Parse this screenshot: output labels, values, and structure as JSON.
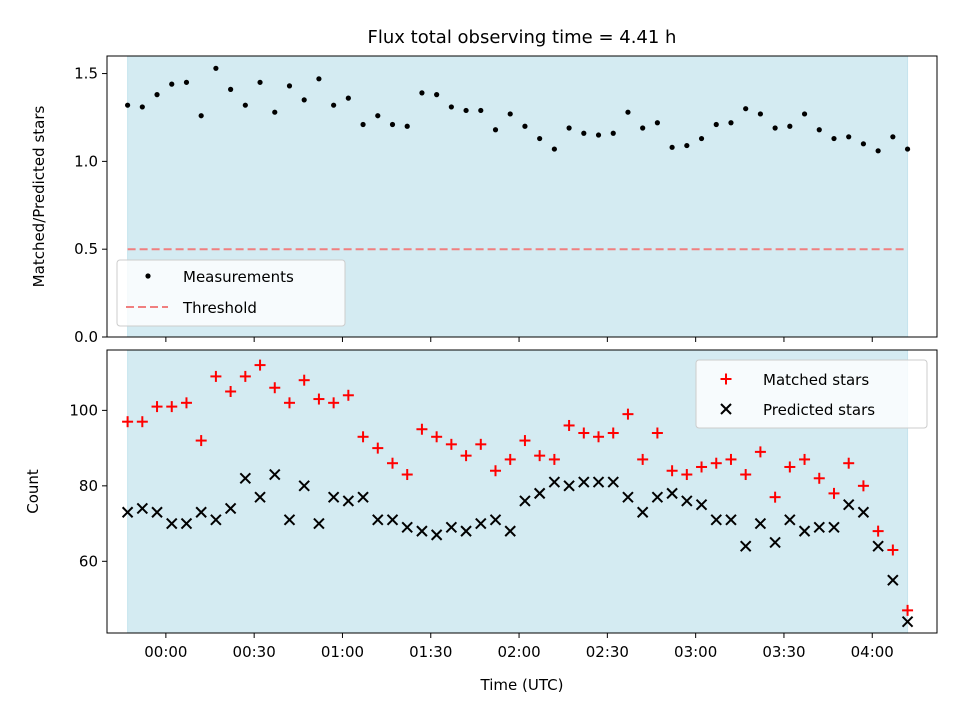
{
  "title": "Flux total observing time = 4.41 h",
  "colors": {
    "shade": "#add8e6",
    "measurement": "#000000",
    "threshold": "#f07f7f",
    "matched": "#ff0000",
    "predicted": "#000000"
  },
  "chart_data": [
    {
      "type": "scatter",
      "panel": "top",
      "ylabel": "Matched/Predicted stars",
      "ylim": [
        0,
        1.6
      ],
      "yticks": [
        0.0,
        0.5,
        1.0,
        1.5
      ],
      "ytick_labels": [
        "0.0",
        "0.5",
        "1.0",
        "1.5"
      ],
      "legend_position": "lower-left",
      "legend": [
        "Measurements",
        "Threshold"
      ],
      "shaded_range": [
        "-00:13",
        "04:12"
      ],
      "threshold": 0.5,
      "series": [
        {
          "name": "Measurements",
          "x": [
            "-00:13",
            "-00:08",
            "-00:03",
            "00:02",
            "00:07",
            "00:12",
            "00:17",
            "00:22",
            "00:27",
            "00:32",
            "00:37",
            "00:42",
            "00:47",
            "00:52",
            "00:57",
            "01:02",
            "01:07",
            "01:12",
            "01:17",
            "01:22",
            "01:27",
            "01:32",
            "01:37",
            "01:42",
            "01:47",
            "01:52",
            "01:57",
            "02:02",
            "02:07",
            "02:12",
            "02:17",
            "02:22",
            "02:27",
            "02:32",
            "02:37",
            "02:42",
            "02:47",
            "02:52",
            "02:57",
            "03:02",
            "03:07",
            "03:12",
            "03:17",
            "03:22",
            "03:27",
            "03:32",
            "03:37",
            "03:42",
            "03:47",
            "03:52",
            "03:57",
            "04:02",
            "04:07",
            "04:12"
          ],
          "y": [
            1.32,
            1.31,
            1.38,
            1.44,
            1.45,
            1.26,
            1.53,
            1.41,
            1.32,
            1.45,
            1.28,
            1.43,
            1.35,
            1.47,
            1.32,
            1.36,
            1.21,
            1.26,
            1.21,
            1.2,
            1.39,
            1.38,
            1.31,
            1.29,
            1.29,
            1.18,
            1.27,
            1.2,
            1.13,
            1.07,
            1.19,
            1.16,
            1.15,
            1.16,
            1.28,
            1.19,
            1.22,
            1.08,
            1.09,
            1.13,
            1.21,
            1.22,
            1.3,
            1.27,
            1.19,
            1.2,
            1.27,
            1.18,
            1.13,
            1.14,
            1.1,
            1.06,
            1.14,
            1.07
          ]
        }
      ]
    },
    {
      "type": "scatter",
      "panel": "bottom",
      "xlabel": "Time (UTC)",
      "ylabel": "Count",
      "ylim": [
        41,
        116
      ],
      "yticks": [
        60,
        80,
        100
      ],
      "ytick_labels": [
        "60",
        "80",
        "100"
      ],
      "xticks": [
        "00:00",
        "00:30",
        "01:00",
        "01:30",
        "02:00",
        "02:30",
        "03:00",
        "03:30",
        "04:00"
      ],
      "xlim": [
        "-00:20",
        "04:22"
      ],
      "legend_position": "upper-right",
      "legend": [
        "Matched stars",
        "Predicted stars"
      ],
      "series": [
        {
          "name": "Matched stars",
          "x": [
            "-00:13",
            "-00:08",
            "-00:03",
            "00:02",
            "00:07",
            "00:12",
            "00:17",
            "00:22",
            "00:27",
            "00:32",
            "00:37",
            "00:42",
            "00:47",
            "00:52",
            "00:57",
            "01:02",
            "01:07",
            "01:12",
            "01:17",
            "01:22",
            "01:27",
            "01:32",
            "01:37",
            "01:42",
            "01:47",
            "01:52",
            "01:57",
            "02:02",
            "02:07",
            "02:12",
            "02:17",
            "02:22",
            "02:27",
            "02:32",
            "02:37",
            "02:42",
            "02:47",
            "02:52",
            "02:57",
            "03:02",
            "03:07",
            "03:12",
            "03:17",
            "03:22",
            "03:27",
            "03:32",
            "03:37",
            "03:42",
            "03:47",
            "03:52",
            "03:57",
            "04:02",
            "04:07",
            "04:12"
          ],
          "y": [
            97,
            97,
            101,
            101,
            102,
            92,
            109,
            105,
            109,
            112,
            106,
            102,
            108,
            103,
            102,
            104,
            93,
            90,
            86,
            83,
            95,
            93,
            91,
            88,
            91,
            84,
            87,
            92,
            88,
            87,
            96,
            94,
            93,
            94,
            99,
            87,
            94,
            84,
            83,
            85,
            86,
            87,
            83,
            89,
            77,
            85,
            87,
            82,
            78,
            86,
            80,
            68,
            63,
            47
          ]
        },
        {
          "name": "Predicted stars",
          "x": [
            "-00:13",
            "-00:08",
            "-00:03",
            "00:02",
            "00:07",
            "00:12",
            "00:17",
            "00:22",
            "00:27",
            "00:32",
            "00:37",
            "00:42",
            "00:47",
            "00:52",
            "00:57",
            "01:02",
            "01:07",
            "01:12",
            "01:17",
            "01:22",
            "01:27",
            "01:32",
            "01:37",
            "01:42",
            "01:47",
            "01:52",
            "01:57",
            "02:02",
            "02:07",
            "02:12",
            "02:17",
            "02:22",
            "02:27",
            "02:32",
            "02:37",
            "02:42",
            "02:47",
            "02:52",
            "02:57",
            "03:02",
            "03:07",
            "03:12",
            "03:17",
            "03:22",
            "03:27",
            "03:32",
            "03:37",
            "03:42",
            "03:47",
            "03:52",
            "03:57",
            "04:02",
            "04:07",
            "04:12"
          ],
          "y": [
            73,
            74,
            73,
            70,
            70,
            73,
            71,
            74,
            82,
            77,
            83,
            71,
            80,
            70,
            77,
            76,
            77,
            71,
            71,
            69,
            68,
            67,
            69,
            68,
            70,
            71,
            68,
            76,
            78,
            81,
            80,
            81,
            81,
            81,
            77,
            73,
            77,
            78,
            76,
            75,
            71,
            71,
            64,
            70,
            65,
            71,
            68,
            69,
            69,
            75,
            73,
            64,
            55,
            44
          ]
        }
      ]
    }
  ]
}
